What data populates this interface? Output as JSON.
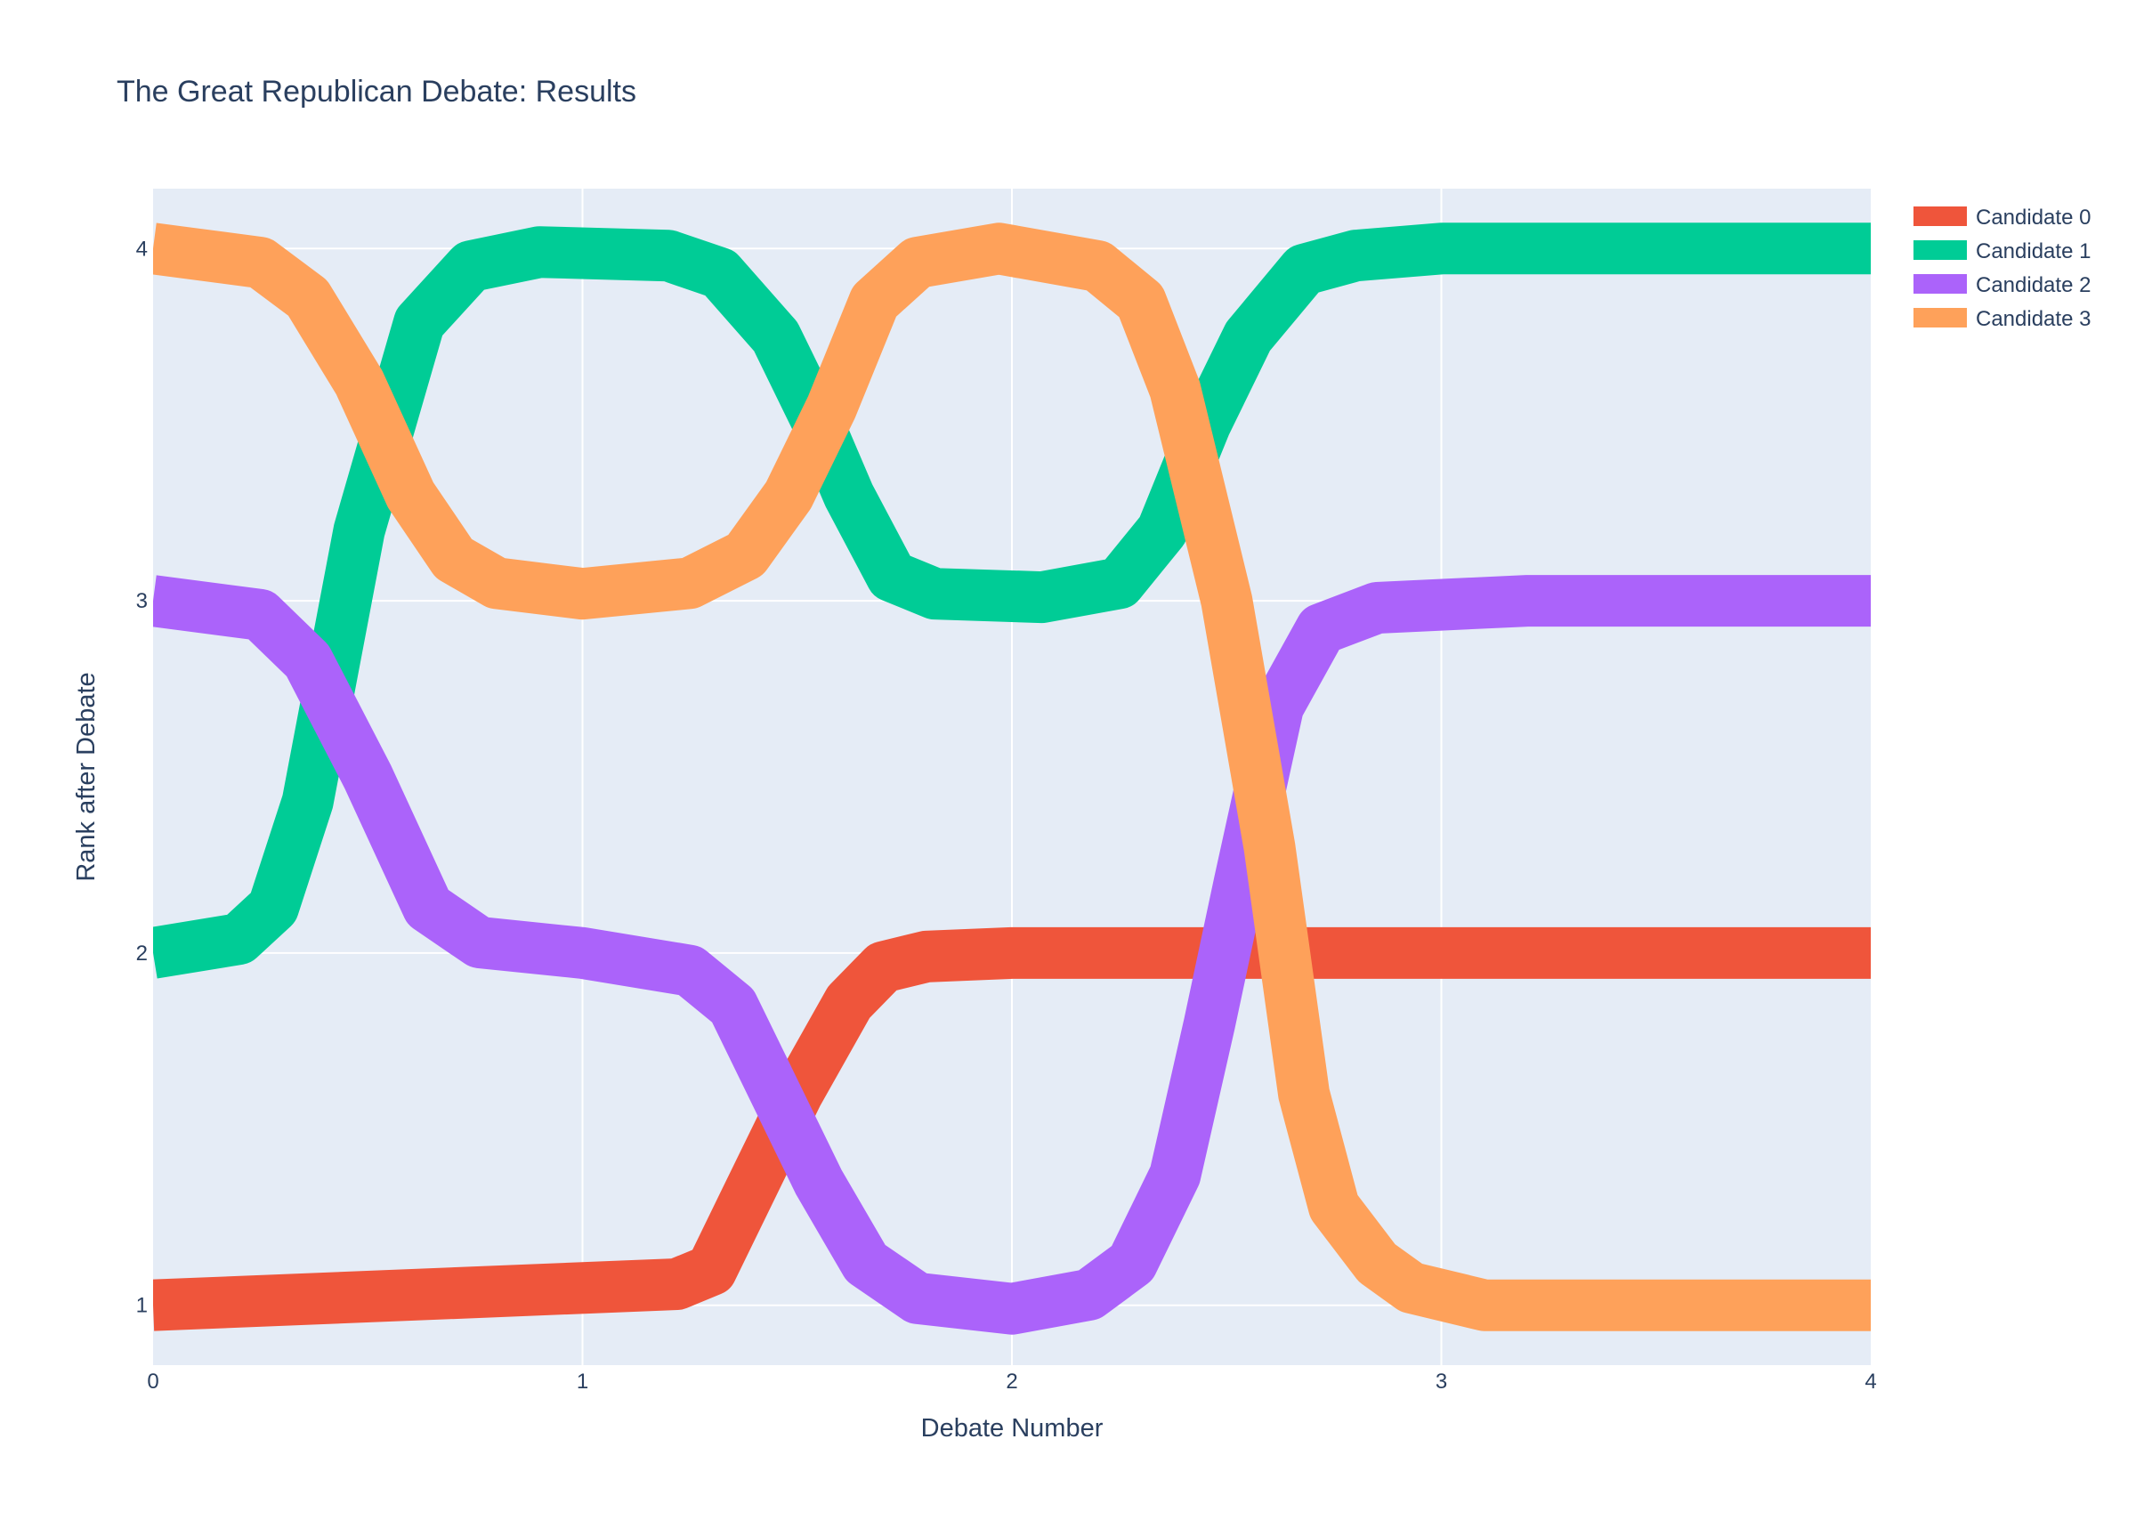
{
  "chart_data": {
    "type": "line",
    "title": "The Great Republican Debate: Results",
    "xlabel": "Debate Number",
    "ylabel": "Rank after Debate",
    "xlim": [
      0,
      4
    ],
    "ylim": [
      0.83,
      4.17
    ],
    "xticks": [
      "0",
      "1",
      "2",
      "3",
      "4"
    ],
    "yticks": [
      "1",
      "2",
      "3",
      "4"
    ],
    "grid": true,
    "legend_position": "top-right",
    "plot_background": "#e5ecf6",
    "series": [
      {
        "name": "Candidate 0",
        "color": "#ef553b",
        "points": [
          [
            0,
            1.0
          ],
          [
            1.22,
            1.06
          ],
          [
            1.3,
            1.1
          ],
          [
            1.38,
            1.3
          ],
          [
            1.5,
            1.6
          ],
          [
            1.62,
            1.86
          ],
          [
            1.7,
            1.96
          ],
          [
            1.8,
            1.99
          ],
          [
            2.0,
            2.0
          ],
          [
            4.0,
            2.0
          ]
        ]
      },
      {
        "name": "Candidate 1",
        "color": "#00cc96",
        "points": [
          [
            0,
            2.0
          ],
          [
            0.2,
            2.04
          ],
          [
            0.28,
            2.13
          ],
          [
            0.36,
            2.43
          ],
          [
            0.48,
            3.2
          ],
          [
            0.62,
            3.79
          ],
          [
            0.74,
            3.95
          ],
          [
            0.9,
            3.99
          ],
          [
            1.2,
            3.98
          ],
          [
            1.32,
            3.93
          ],
          [
            1.45,
            3.75
          ],
          [
            1.55,
            3.5
          ],
          [
            1.62,
            3.3
          ],
          [
            1.72,
            3.07
          ],
          [
            1.82,
            3.02
          ],
          [
            2.07,
            3.01
          ],
          [
            2.25,
            3.05
          ],
          [
            2.35,
            3.2
          ],
          [
            2.45,
            3.5
          ],
          [
            2.55,
            3.75
          ],
          [
            2.68,
            3.94
          ],
          [
            2.8,
            3.98
          ],
          [
            3.0,
            4.0
          ],
          [
            4.0,
            4.0
          ]
        ]
      },
      {
        "name": "Candidate 2",
        "color": "#ab63fa",
        "points": [
          [
            0,
            3.0
          ],
          [
            0.25,
            2.96
          ],
          [
            0.36,
            2.83
          ],
          [
            0.5,
            2.5
          ],
          [
            0.64,
            2.13
          ],
          [
            0.76,
            2.03
          ],
          [
            1.0,
            2.0
          ],
          [
            1.25,
            1.95
          ],
          [
            1.35,
            1.85
          ],
          [
            1.43,
            1.65
          ],
          [
            1.55,
            1.35
          ],
          [
            1.66,
            1.12
          ],
          [
            1.78,
            1.02
          ],
          [
            2.0,
            0.99
          ],
          [
            2.18,
            1.03
          ],
          [
            2.28,
            1.12
          ],
          [
            2.38,
            1.37
          ],
          [
            2.46,
            1.8
          ],
          [
            2.53,
            2.2
          ],
          [
            2.62,
            2.7
          ],
          [
            2.72,
            2.92
          ],
          [
            2.85,
            2.98
          ],
          [
            3.2,
            3.0
          ],
          [
            4.0,
            3.0
          ]
        ]
      },
      {
        "name": "Candidate 3",
        "color": "#fea15a",
        "points": [
          [
            0,
            4.0
          ],
          [
            0.25,
            3.96
          ],
          [
            0.36,
            3.86
          ],
          [
            0.48,
            3.62
          ],
          [
            0.6,
            3.3
          ],
          [
            0.7,
            3.12
          ],
          [
            0.8,
            3.05
          ],
          [
            1.0,
            3.02
          ],
          [
            1.25,
            3.05
          ],
          [
            1.38,
            3.13
          ],
          [
            1.48,
            3.3
          ],
          [
            1.58,
            3.55
          ],
          [
            1.68,
            3.85
          ],
          [
            1.78,
            3.96
          ],
          [
            1.97,
            4.0
          ],
          [
            2.2,
            3.95
          ],
          [
            2.3,
            3.85
          ],
          [
            2.38,
            3.6
          ],
          [
            2.5,
            3.0
          ],
          [
            2.6,
            2.3
          ],
          [
            2.68,
            1.6
          ],
          [
            2.75,
            1.28
          ],
          [
            2.85,
            1.12
          ],
          [
            2.93,
            1.05
          ],
          [
            3.1,
            1.0
          ],
          [
            4.0,
            1.0
          ]
        ]
      }
    ]
  }
}
